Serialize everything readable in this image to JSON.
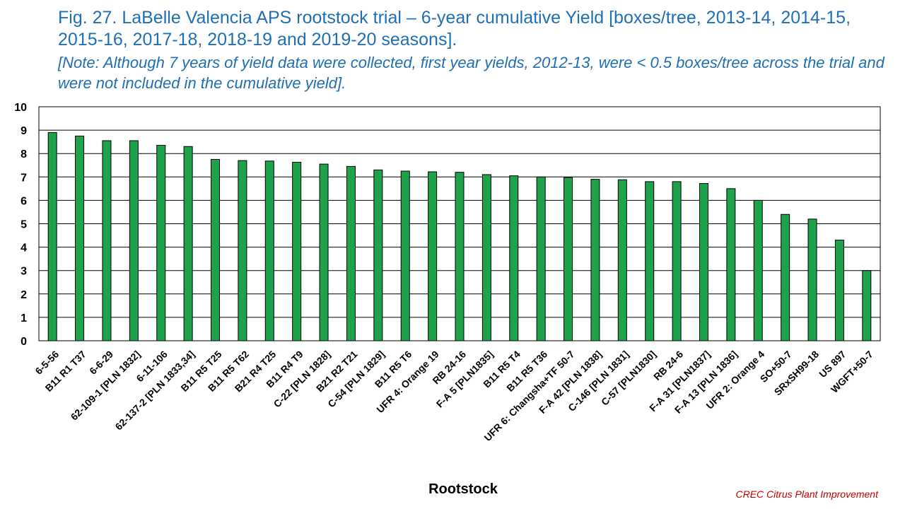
{
  "chart_data": {
    "type": "bar",
    "title": "Fig. 27. LaBelle Valencia APS rootstock trial – 6-year cumulative Yield [boxes/tree,  2013-14, 2014-15, 2015-16, 2017-18, 2018-19 and 2019-20 seasons].",
    "subtitle": " [Note: Although 7 years of yield data were collected, first year yields, 2012-13, were < 0.5 boxes/tree across the trial and were not included in the cumulative yield].",
    "xlabel": "Rootstock",
    "ylabel": "",
    "ylim": [
      0,
      10
    ],
    "yticks": [
      0,
      1,
      2,
      3,
      4,
      5,
      6,
      7,
      8,
      9,
      10
    ],
    "grid": true,
    "bar_color": "#1EA34A",
    "categories": [
      "6-5-56",
      "B11 R1 T37",
      "6-6-29",
      "62-109-1 [PLN 1832]",
      "6-11-106",
      "62-137-2 [PLN 1833,34]",
      "B11 R5 T25",
      "B11 R5 T62",
      "B21 R4 T25",
      "B11 R4 T9",
      "C-22 [PLN 1828]",
      "B21 R2 T21",
      "C-54 [PLN 1829]",
      "B11 R5 T6",
      "UFR 4: Orange 19",
      "RB 24-16",
      "F-A 5 [PLN1835]",
      "B11 R5 T4",
      "B11 R5 T36",
      "UFR 6: Changsha+TF 50-7",
      "F-A 42 [PLN 1838]",
      "C-146 [PLN 1831]",
      "C-57 [PLN1830]",
      "RB 24-6",
      "F-A 31 [PLN1837]",
      "F-A 13 [PLN 1836]",
      "UFR 2: Orange 4",
      "SO+50-7",
      "SRxSH99-18",
      "US 897",
      "WGFT+50-7"
    ],
    "values": [
      8.9,
      8.75,
      8.55,
      8.55,
      8.35,
      8.3,
      7.75,
      7.7,
      7.68,
      7.63,
      7.55,
      7.45,
      7.3,
      7.25,
      7.22,
      7.2,
      7.1,
      7.05,
      7.0,
      6.98,
      6.9,
      6.88,
      6.8,
      6.8,
      6.72,
      6.5,
      6.0,
      5.4,
      5.2,
      4.3,
      3.0
    ]
  },
  "footer": {
    "credit": "CREC Citrus Plant Improvement"
  }
}
